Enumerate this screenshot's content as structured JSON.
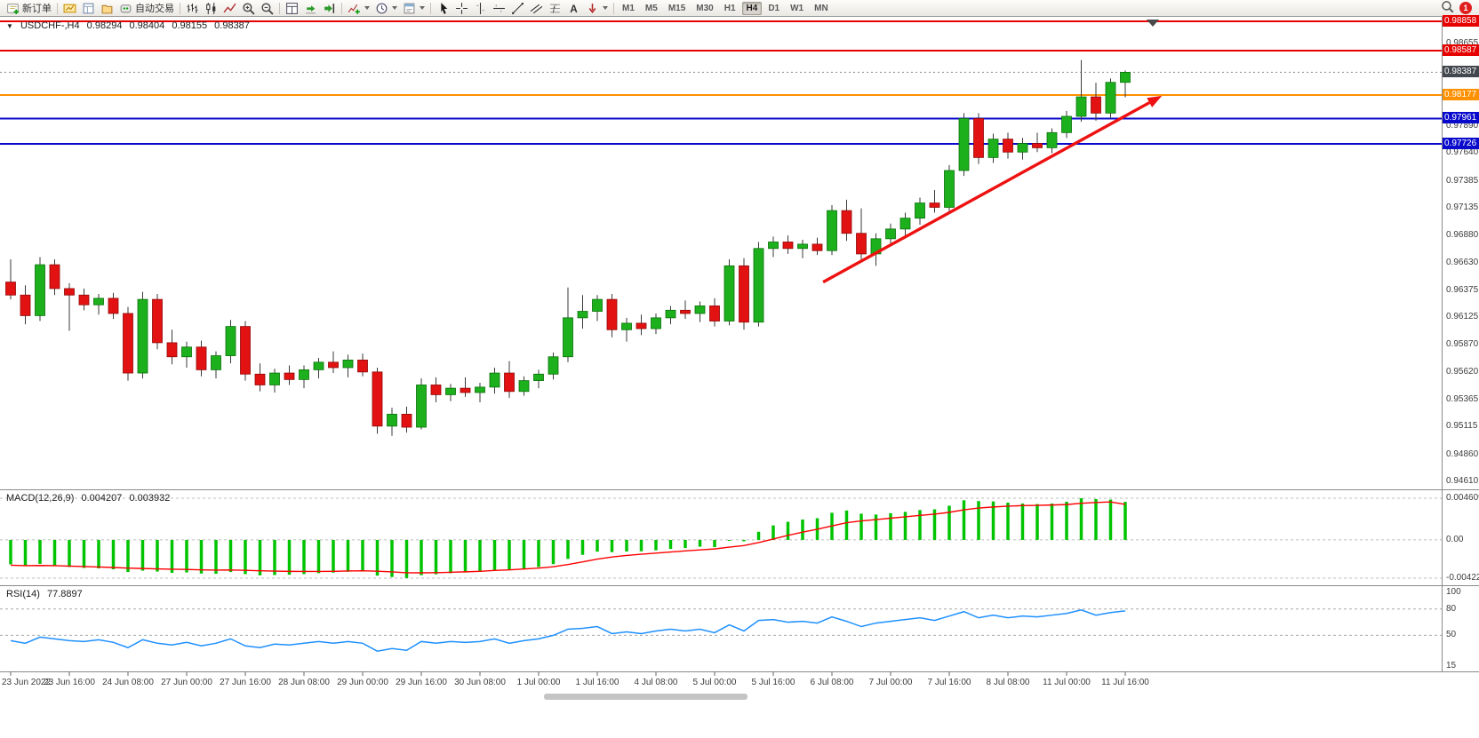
{
  "toolbar": {
    "new_order_label": "新订单",
    "auto_trading_label": "自动交易",
    "icons": [
      "market-watch",
      "data-window",
      "navigator",
      "auto-trading",
      "|",
      "bar-chart",
      "candlestick-chart",
      "line-chart",
      "zoom-in",
      "zoom-out",
      "|",
      "tile-windows",
      "auto-scroll",
      "chart-shift",
      "|",
      "indicators*",
      "periods*",
      "templates*",
      "|",
      "cursor",
      "crosshair",
      "vertical-line",
      "horizontal-line",
      "trendline",
      "equidistant-channel",
      "fibonacci",
      "text-label",
      "arrow-tools*"
    ],
    "timeframes": [
      "M1",
      "M5",
      "M15",
      "M30",
      "H1",
      "H4",
      "D1",
      "W1",
      "MN"
    ],
    "active_timeframe": "H4",
    "notification_count": "1"
  },
  "header": {
    "symbol_period": "USDCHF-,H4",
    "open": "0.98294",
    "high": "0.98404",
    "low": "0.98155",
    "close": "0.98387"
  },
  "price_axis": {
    "ticks": [
      "0.98655",
      "0.98145",
      "0.97890",
      "0.97640",
      "0.97385",
      "0.97135",
      "0.96880",
      "0.96630",
      "0.96375",
      "0.96125",
      "0.95870",
      "0.95620",
      "0.95365",
      "0.95115",
      "0.94860",
      "0.94610"
    ],
    "badges": [
      {
        "value": "0.98858",
        "color": "#e60000"
      },
      {
        "value": "0.98587",
        "color": "#e60000"
      },
      {
        "value": "0.98387",
        "color": "#42484e"
      },
      {
        "value": "0.98177",
        "color": "#ff9000"
      },
      {
        "value": "0.97961",
        "color": "#0a0acc"
      },
      {
        "value": "0.97726",
        "color": "#0a0acc"
      }
    ]
  },
  "time_axis": [
    "23 Jun 2022",
    "23 Jun 16:00",
    "24 Jun 08:00",
    "27 Jun 00:00",
    "27 Jun 16:00",
    "28 Jun 08:00",
    "29 Jun 00:00",
    "29 Jun 16:00",
    "30 Jun 08:00",
    "1 Jul 00:00",
    "1 Jul 16:00",
    "4 Jul 08:00",
    "5 Jul 00:00",
    "5 Jul 16:00",
    "6 Jul 08:00",
    "7 Jul 00:00",
    "7 Jul 16:00",
    "8 Jul 08:00",
    "11 Jul 00:00",
    "11 Jul 16:00"
  ],
  "macd_panel": {
    "label": "MACD(12,26,9)",
    "value1": "0.004207",
    "value2": "0.003932",
    "axis": [
      "0.004609",
      "0.00",
      "-0.004225"
    ]
  },
  "rsi_panel": {
    "label": "RSI(14)",
    "value": "77.8897",
    "axis": [
      "100",
      "80",
      "50",
      "15"
    ]
  },
  "colors": {
    "candle_up": "#1db01d",
    "candle_down": "#e31212",
    "candle_up_border": "#0a700a",
    "candle_down_border": "#8f0808",
    "wick": "#3a3a3a",
    "macd_hist": "#00c400",
    "macd_signal": "#ff0000",
    "rsi_line": "#1e90ff",
    "arrow": "#ee1111"
  },
  "chart_data": {
    "type": "candlestick",
    "symbol": "USDCHF-",
    "period": "H4",
    "price_range": [
      0.9454,
      0.9891
    ],
    "candles": [
      [
        0.9645,
        0.9666,
        0.9629,
        0.9633
      ],
      [
        0.9633,
        0.9642,
        0.9606,
        0.9614
      ],
      [
        0.9614,
        0.9668,
        0.9609,
        0.9661
      ],
      [
        0.9661,
        0.9666,
        0.9633,
        0.9639
      ],
      [
        0.9639,
        0.9644,
        0.96,
        0.9633
      ],
      [
        0.9633,
        0.9639,
        0.9619,
        0.9624
      ],
      [
        0.9624,
        0.9634,
        0.9615,
        0.963
      ],
      [
        0.963,
        0.9635,
        0.9611,
        0.9616
      ],
      [
        0.9616,
        0.9622,
        0.9554,
        0.9561
      ],
      [
        0.9561,
        0.9636,
        0.9556,
        0.9629
      ],
      [
        0.9629,
        0.9634,
        0.9583,
        0.9589
      ],
      [
        0.9589,
        0.9601,
        0.9569,
        0.9576
      ],
      [
        0.9576,
        0.959,
        0.9566,
        0.9585
      ],
      [
        0.9585,
        0.9591,
        0.9558,
        0.9564
      ],
      [
        0.9564,
        0.9581,
        0.9556,
        0.9577
      ],
      [
        0.9577,
        0.961,
        0.957,
        0.9604
      ],
      [
        0.9604,
        0.9609,
        0.9554,
        0.956
      ],
      [
        0.956,
        0.957,
        0.9544,
        0.955
      ],
      [
        0.955,
        0.9565,
        0.9543,
        0.9561
      ],
      [
        0.9561,
        0.9568,
        0.955,
        0.9555
      ],
      [
        0.9555,
        0.9568,
        0.9547,
        0.9564
      ],
      [
        0.9564,
        0.9575,
        0.9556,
        0.9571
      ],
      [
        0.9571,
        0.9581,
        0.9561,
        0.9566
      ],
      [
        0.9566,
        0.9578,
        0.9557,
        0.9573
      ],
      [
        0.9573,
        0.9579,
        0.9558,
        0.9562
      ],
      [
        0.9562,
        0.9566,
        0.9505,
        0.9512
      ],
      [
        0.9512,
        0.9529,
        0.9503,
        0.9523
      ],
      [
        0.9523,
        0.953,
        0.9506,
        0.9511
      ],
      [
        0.9511,
        0.9556,
        0.9509,
        0.955
      ],
      [
        0.955,
        0.9557,
        0.9534,
        0.9541
      ],
      [
        0.9541,
        0.9551,
        0.9535,
        0.9547
      ],
      [
        0.9547,
        0.9557,
        0.9539,
        0.9543
      ],
      [
        0.9543,
        0.9552,
        0.9534,
        0.9548
      ],
      [
        0.9548,
        0.9566,
        0.9542,
        0.9561
      ],
      [
        0.9561,
        0.9572,
        0.9538,
        0.9544
      ],
      [
        0.9544,
        0.9558,
        0.954,
        0.9554
      ],
      [
        0.9554,
        0.9564,
        0.9547,
        0.956
      ],
      [
        0.956,
        0.958,
        0.9555,
        0.9576
      ],
      [
        0.9576,
        0.964,
        0.9571,
        0.9612
      ],
      [
        0.9612,
        0.9633,
        0.9602,
        0.9618
      ],
      [
        0.9618,
        0.9633,
        0.9609,
        0.9629
      ],
      [
        0.9629,
        0.9634,
        0.9594,
        0.9601
      ],
      [
        0.9601,
        0.9612,
        0.959,
        0.9607
      ],
      [
        0.9607,
        0.9615,
        0.9596,
        0.9602
      ],
      [
        0.9602,
        0.9616,
        0.9597,
        0.9612
      ],
      [
        0.9612,
        0.9623,
        0.9606,
        0.9619
      ],
      [
        0.9619,
        0.9628,
        0.9611,
        0.9616
      ],
      [
        0.9616,
        0.9627,
        0.9608,
        0.9623
      ],
      [
        0.9623,
        0.963,
        0.9604,
        0.9609
      ],
      [
        0.9609,
        0.9666,
        0.9605,
        0.966
      ],
      [
        0.966,
        0.9667,
        0.9601,
        0.9608
      ],
      [
        0.9608,
        0.9682,
        0.9604,
        0.9676
      ],
      [
        0.9676,
        0.9687,
        0.9668,
        0.9682
      ],
      [
        0.9682,
        0.9688,
        0.9671,
        0.9676
      ],
      [
        0.9676,
        0.9684,
        0.9667,
        0.968
      ],
      [
        0.968,
        0.9686,
        0.967,
        0.9674
      ],
      [
        0.9674,
        0.9716,
        0.967,
        0.9711
      ],
      [
        0.9711,
        0.9721,
        0.9683,
        0.969
      ],
      [
        0.969,
        0.9713,
        0.9664,
        0.9671
      ],
      [
        0.9671,
        0.969,
        0.966,
        0.9685
      ],
      [
        0.9685,
        0.9699,
        0.9678,
        0.9694
      ],
      [
        0.9694,
        0.9709,
        0.9687,
        0.9704
      ],
      [
        0.9704,
        0.9723,
        0.9698,
        0.9718
      ],
      [
        0.9718,
        0.973,
        0.9709,
        0.9714
      ],
      [
        0.9714,
        0.9753,
        0.9709,
        0.9748
      ],
      [
        0.9748,
        0.9801,
        0.9743,
        0.9796
      ],
      [
        0.9796,
        0.9801,
        0.9754,
        0.976
      ],
      [
        0.976,
        0.9782,
        0.9755,
        0.9777
      ],
      [
        0.9777,
        0.9783,
        0.9759,
        0.9765
      ],
      [
        0.9765,
        0.9778,
        0.9758,
        0.9773
      ],
      [
        0.9773,
        0.9783,
        0.9765,
        0.9769
      ],
      [
        0.9769,
        0.9787,
        0.9764,
        0.9783
      ],
      [
        0.9783,
        0.9803,
        0.9778,
        0.9798
      ],
      [
        0.9798,
        0.985,
        0.9793,
        0.9816
      ],
      [
        0.9816,
        0.9829,
        0.9794,
        0.9801
      ],
      [
        0.9801,
        0.9833,
        0.9796,
        0.98294
      ],
      [
        0.98294,
        0.98404,
        0.98155,
        0.98387
      ]
    ],
    "hlines": [
      {
        "price": 0.98858,
        "color": "#e60000",
        "width": 1.6
      },
      {
        "price": 0.98587,
        "color": "#e60000",
        "width": 1.6
      },
      {
        "price": 0.98177,
        "color": "#ff9000",
        "width": 2
      },
      {
        "price": 0.97961,
        "color": "#0a0acc",
        "width": 2
      },
      {
        "price": 0.97726,
        "color": "#0a0acc",
        "width": 2
      }
    ],
    "current_price": 0.98387,
    "trend_arrow": {
      "bar_start": 55.4,
      "price_start": 0.9645,
      "bar_end": 78.5,
      "price_end": 0.9817
    },
    "macd": {
      "histogram": [
        -0.0027,
        -0.0029,
        -0.00265,
        -0.0028,
        -0.003,
        -0.0031,
        -0.00315,
        -0.00325,
        -0.00355,
        -0.0034,
        -0.0035,
        -0.00365,
        -0.0036,
        -0.00372,
        -0.00375,
        -0.00355,
        -0.00378,
        -0.00392,
        -0.00388,
        -0.00385,
        -0.00378,
        -0.00368,
        -0.00362,
        -0.00352,
        -0.0035,
        -0.00395,
        -0.0041,
        -0.004225,
        -0.0039,
        -0.0038,
        -0.00368,
        -0.0036,
        -0.00352,
        -0.00335,
        -0.00332,
        -0.0032,
        -0.003,
        -0.00268,
        -0.0021,
        -0.00165,
        -0.0013,
        -0.00135,
        -0.00128,
        -0.00126,
        -0.00115,
        -0.001,
        -0.0009,
        -0.00075,
        -0.0008,
        -0.0001,
        -0.00015,
        0.0009,
        0.0016,
        0.002,
        0.00225,
        0.0024,
        0.003,
        0.00325,
        0.0029,
        0.0028,
        0.00295,
        0.0031,
        0.0033,
        0.00338,
        0.00378,
        0.00438,
        0.0043,
        0.00425,
        0.00412,
        0.00402,
        0.00396,
        0.00402,
        0.00422,
        0.004609,
        0.00452,
        0.00446,
        0.004207
      ],
      "signal": [
        -0.0028,
        -0.00285,
        -0.00283,
        -0.00285,
        -0.0029,
        -0.00295,
        -0.003,
        -0.00305,
        -0.00312,
        -0.00316,
        -0.0032,
        -0.00324,
        -0.00327,
        -0.00331,
        -0.00334,
        -0.00333,
        -0.00336,
        -0.00341,
        -0.00345,
        -0.00348,
        -0.00349,
        -0.00349,
        -0.00347,
        -0.00344,
        -0.00341,
        -0.00346,
        -0.00354,
        -0.00363,
        -0.00364,
        -0.00362,
        -0.00358,
        -0.00353,
        -0.00347,
        -0.00338,
        -0.00331,
        -0.00322,
        -0.00312,
        -0.00297,
        -0.00272,
        -0.00243,
        -0.00212,
        -0.00189,
        -0.00172,
        -0.00158,
        -0.00146,
        -0.00134,
        -0.00122,
        -0.0011,
        -0.001,
        -0.0008,
        -0.00063,
        -0.0003,
        0.0001,
        0.0005,
        0.00086,
        0.00118,
        0.00155,
        0.0019,
        0.0021,
        0.00225,
        0.0024,
        0.00255,
        0.00271,
        0.00285,
        0.00305,
        0.00333,
        0.00352,
        0.00364,
        0.00373,
        0.00379,
        0.00382,
        0.00386,
        0.00391,
        0.00405,
        0.00414,
        0.0042,
        0.003932
      ],
      "axis_levels": [
        0.004609,
        0,
        -0.004225
      ],
      "range": [
        -0.004225,
        0.004609
      ]
    },
    "rsi": {
      "values": [
        44,
        41,
        48,
        46,
        44,
        43,
        45,
        42,
        36,
        45,
        41,
        39,
        42,
        38,
        41,
        46,
        38,
        36,
        40,
        39,
        41,
        43,
        41,
        43,
        41,
        32,
        35,
        33,
        43,
        41,
        43,
        42,
        43,
        46,
        41,
        44,
        46,
        50,
        57,
        58,
        60,
        52,
        54,
        52,
        55,
        57,
        55,
        57,
        53,
        62,
        55,
        67,
        68,
        65,
        66,
        64,
        71,
        66,
        60,
        64,
        66,
        68,
        70,
        67,
        72,
        77,
        70,
        73,
        70,
        72,
        71,
        73,
        75,
        79,
        73,
        76,
        77.89
      ],
      "level_lines": [
        80,
        50
      ],
      "axis_levels": [
        100,
        80,
        50,
        15
      ],
      "range": [
        15,
        100
      ]
    }
  }
}
